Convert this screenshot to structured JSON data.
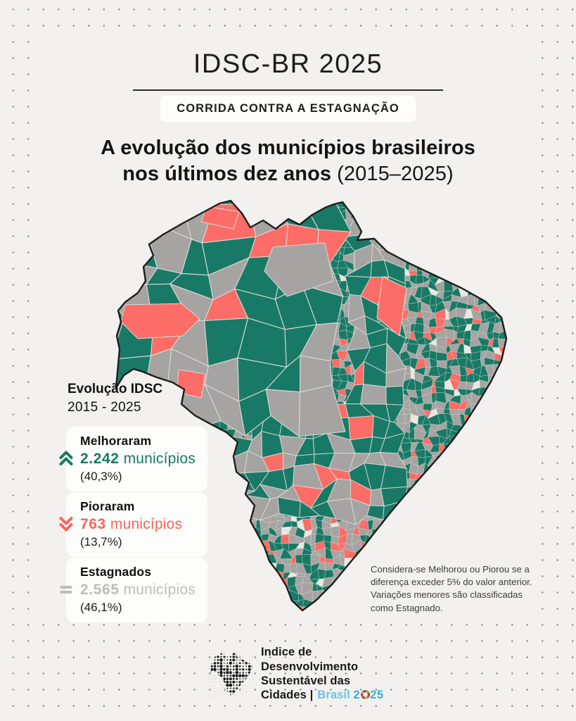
{
  "header": {
    "title": "IDSC-BR 2025",
    "badge": "CORRIDA CONTRA A ESTAGNAÇÃO",
    "heading_line1": "A evolução dos municípios brasileiros",
    "heading_line2_bold": "nos últimos dez anos",
    "heading_line2_regular": "(2015–2025)"
  },
  "legend": {
    "title": "Evolução IDSC",
    "period": "2015 - 2025",
    "items": [
      {
        "label": "Melhoraram",
        "value": "2.242",
        "unit": " municípios",
        "percent": "(40,3%)",
        "color": "#17795f",
        "icon": "chevrons-up-icon"
      },
      {
        "label": "Pioraram",
        "value": "763",
        "unit": " municípios",
        "percent": "(13,7%)",
        "color": "#f8645e",
        "icon": "chevrons-down-icon"
      },
      {
        "label": "Estagnados",
        "value": "2.565",
        "unit": " municípios",
        "percent": "(46,1%)",
        "color": "#bdbcba",
        "icon": "equals-icon"
      }
    ]
  },
  "map": {
    "colors": {
      "improved": "#187a66",
      "worsened": "#fb6d66",
      "stagnant": "#a5a4a2",
      "pale": "#e9e7e3",
      "cell_border": "#dcdad6",
      "outline": "#1e1d1b"
    }
  },
  "note": {
    "text": "Considera-se Melhorou ou Piorou se a\ndiferença exceder 5% do valor anterior.\nVariações menores são classificadas\ncomo Estagnado."
  },
  "footer": {
    "org_lines": "Indice de\nDesenvolvimento\nSustentável das",
    "org_last": "Cidades |",
    "brand": "Brasil",
    "year": "2025"
  },
  "chart_data": {
    "type": "choropleth_map",
    "title": "A evolução dos municípios brasileiros nos últimos dez anos (2015–2025)",
    "region": "Brazil, by municipality",
    "categories": [
      "Melhoraram",
      "Pioraram",
      "Estagnados"
    ],
    "values": [
      2242,
      763,
      2565
    ],
    "percents": [
      40.3,
      13.7,
      46.1
    ],
    "colors": [
      "#187a66",
      "#fb6d66",
      "#a5a4a2"
    ],
    "legend_position": "left",
    "note": "Considera-se Melhorou ou Piorou se a diferença exceder 5% do valor anterior. Variações menores são classificadas como Estagnado."
  }
}
